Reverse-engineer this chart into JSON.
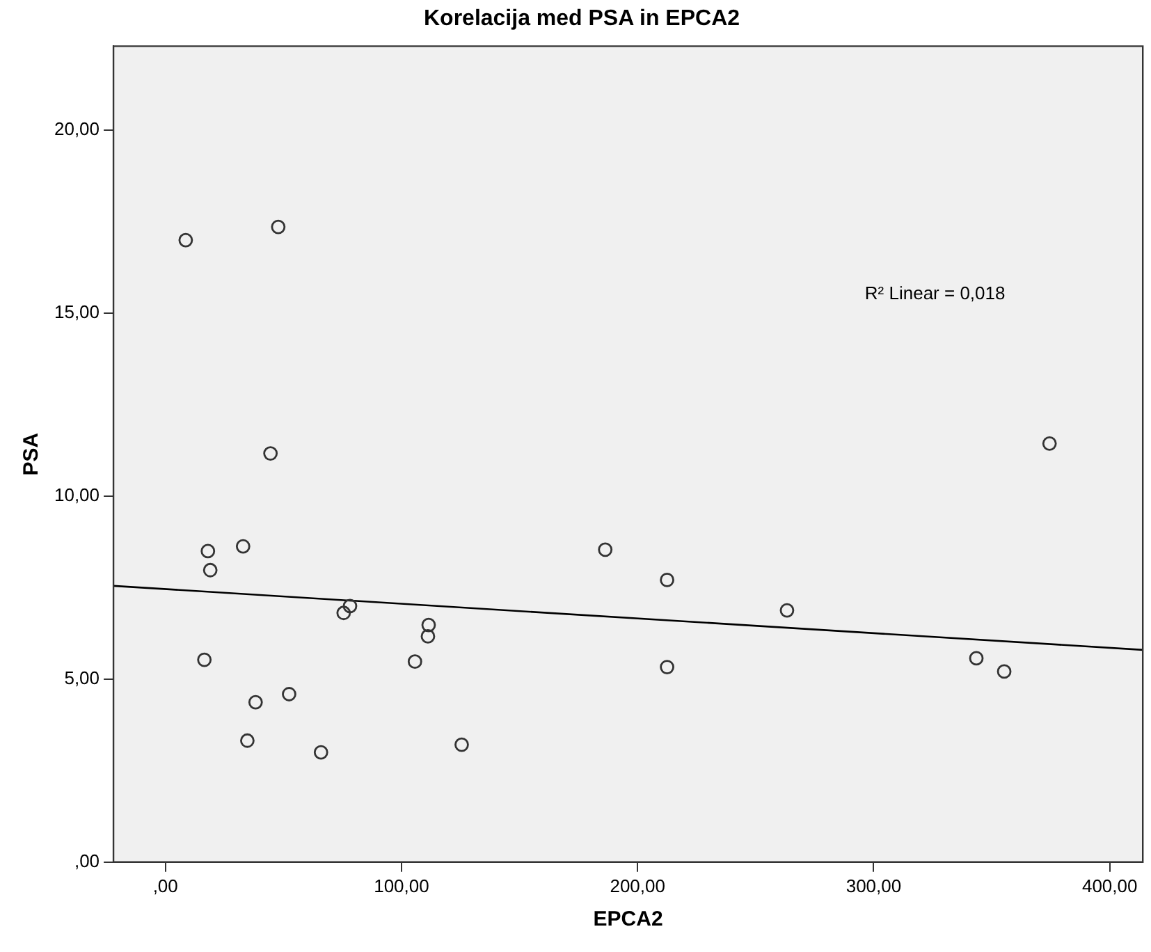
{
  "chart_data": {
    "type": "scatter",
    "title": "Korelacija med PSA in EPCA2",
    "xlabel": "EPCA2",
    "ylabel": "PSA",
    "xlim": [
      -22,
      414
    ],
    "ylim": [
      0,
      22.3
    ],
    "xticks": [
      {
        "value": 0,
        "label": ",00"
      },
      {
        "value": 100,
        "label": "100,00"
      },
      {
        "value": 200,
        "label": "200,00"
      },
      {
        "value": 300,
        "label": "300,00"
      },
      {
        "value": 400,
        "label": "400,00"
      }
    ],
    "yticks": [
      {
        "value": 0,
        "label": ",00"
      },
      {
        "value": 5,
        "label": "5,00"
      },
      {
        "value": 10,
        "label": "10,00"
      },
      {
        "value": 15,
        "label": "15,00"
      },
      {
        "value": 20,
        "label": "20,00"
      }
    ],
    "grid": false,
    "legend": false,
    "marker": "circle",
    "annotations": [
      "R² Linear = 0,018"
    ],
    "series": [
      {
        "color": "#333333",
        "x": [
          8.6,
          47.8,
          44.5,
          18.0,
          32.9,
          19.0,
          78.2,
          75.5,
          111.5,
          111.2,
          16.5,
          105.7,
          52.4,
          38.2,
          34.7,
          65.9,
          125.5,
          186.3,
          212.5,
          212.5,
          263.3,
          343.5,
          355.3,
          374.5
        ],
        "values": [
          17.0,
          17.36,
          11.17,
          8.5,
          8.63,
          7.98,
          7.0,
          6.81,
          6.48,
          6.17,
          5.53,
          5.48,
          4.59,
          4.37,
          3.32,
          3.0,
          3.21,
          8.54,
          7.71,
          5.33,
          6.88,
          5.57,
          5.21,
          11.44
        ]
      },
      {
        "type": "line",
        "color": "#000000",
        "x": [
          -22,
          414
        ],
        "values": [
          7.55,
          5.8
        ],
        "marker": "none"
      }
    ]
  }
}
